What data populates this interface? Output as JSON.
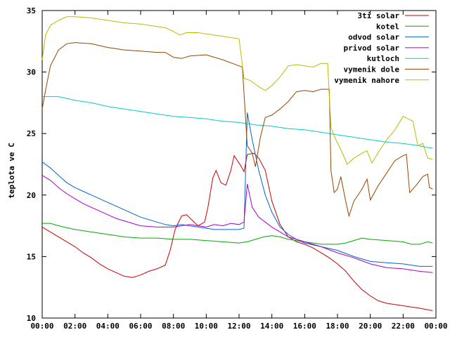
{
  "chart_data": {
    "type": "line",
    "title": "",
    "xlabel": "",
    "ylabel": "teplota ve C",
    "xlim": [
      0,
      24
    ],
    "ylim": [
      10,
      35
    ],
    "x_ticks": [
      0,
      2,
      4,
      6,
      8,
      10,
      12,
      14,
      16,
      18,
      20,
      22,
      24
    ],
    "x_tick_labels": [
      "00:00",
      "02:00",
      "04:00",
      "06:00",
      "08:00",
      "10:00",
      "12:00",
      "14:00",
      "16:00",
      "18:00",
      "20:00",
      "22:00",
      "00:00"
    ],
    "y_ticks": [
      10,
      15,
      20,
      25,
      30,
      35
    ],
    "y_tick_labels": [
      "10",
      "15",
      "20",
      "25",
      "30",
      "35"
    ],
    "grid": false,
    "legend_position": "top-right",
    "series": [
      {
        "name": "3ti solar",
        "color": "#cc0000",
        "points": [
          [
            0,
            17.4
          ],
          [
            0.5,
            17.0
          ],
          [
            1,
            16.6
          ],
          [
            1.5,
            16.2
          ],
          [
            2,
            15.8
          ],
          [
            2.5,
            15.3
          ],
          [
            3,
            14.9
          ],
          [
            3.5,
            14.4
          ],
          [
            4,
            14.0
          ],
          [
            4.5,
            13.7
          ],
          [
            5,
            13.4
          ],
          [
            5.5,
            13.3
          ],
          [
            6,
            13.5
          ],
          [
            6.5,
            13.8
          ],
          [
            7,
            14.0
          ],
          [
            7.5,
            14.3
          ],
          [
            7.8,
            15.5
          ],
          [
            8.1,
            17.2
          ],
          [
            8.5,
            18.3
          ],
          [
            8.8,
            18.4
          ],
          [
            9.1,
            18.0
          ],
          [
            9.5,
            17.5
          ],
          [
            9.9,
            17.8
          ],
          [
            10.1,
            19.0
          ],
          [
            10.4,
            21.4
          ],
          [
            10.6,
            22.0
          ],
          [
            10.9,
            21.0
          ],
          [
            11.2,
            20.8
          ],
          [
            11.5,
            22.0
          ],
          [
            11.7,
            23.2
          ],
          [
            12.1,
            22.4
          ],
          [
            12.3,
            21.9
          ],
          [
            12.5,
            23.3
          ],
          [
            12.9,
            23.4
          ],
          [
            13.2,
            23.0
          ],
          [
            13.6,
            22.0
          ],
          [
            14.0,
            19.5
          ],
          [
            14.5,
            17.6
          ],
          [
            15.0,
            16.6
          ],
          [
            15.5,
            16.2
          ],
          [
            16.0,
            16.0
          ],
          [
            16.5,
            15.7
          ],
          [
            17.0,
            15.3
          ],
          [
            17.5,
            14.9
          ],
          [
            18.0,
            14.4
          ],
          [
            18.5,
            13.8
          ],
          [
            19.0,
            13.0
          ],
          [
            19.5,
            12.3
          ],
          [
            20.0,
            11.8
          ],
          [
            20.5,
            11.4
          ],
          [
            21.0,
            11.2
          ],
          [
            22.0,
            11.0
          ],
          [
            23.0,
            10.8
          ],
          [
            23.8,
            10.6
          ]
        ]
      },
      {
        "name": "kotel",
        "color": "#00aa00",
        "points": [
          [
            0,
            17.7
          ],
          [
            0.5,
            17.7
          ],
          [
            1,
            17.5
          ],
          [
            2,
            17.2
          ],
          [
            3,
            17.0
          ],
          [
            4,
            16.8
          ],
          [
            5,
            16.6
          ],
          [
            6,
            16.5
          ],
          [
            7,
            16.5
          ],
          [
            8,
            16.4
          ],
          [
            9,
            16.4
          ],
          [
            10,
            16.3
          ],
          [
            11,
            16.2
          ],
          [
            12,
            16.1
          ],
          [
            12.5,
            16.2
          ],
          [
            13,
            16.4
          ],
          [
            13.5,
            16.6
          ],
          [
            14,
            16.7
          ],
          [
            14.5,
            16.6
          ],
          [
            15,
            16.4
          ],
          [
            16,
            16.2
          ],
          [
            17,
            16.0
          ],
          [
            18,
            16.0
          ],
          [
            18.5,
            16.1
          ],
          [
            19,
            16.3
          ],
          [
            19.5,
            16.5
          ],
          [
            20,
            16.4
          ],
          [
            21,
            16.3
          ],
          [
            22,
            16.2
          ],
          [
            22.5,
            16.0
          ],
          [
            23,
            16.0
          ],
          [
            23.5,
            16.2
          ],
          [
            23.8,
            16.1
          ]
        ]
      },
      {
        "name": "odvod solar",
        "color": "#0066cc",
        "points": [
          [
            0,
            22.7
          ],
          [
            0.5,
            22.2
          ],
          [
            1,
            21.6
          ],
          [
            1.5,
            21.0
          ],
          [
            2,
            20.6
          ],
          [
            2.5,
            20.3
          ],
          [
            3,
            20.0
          ],
          [
            3.5,
            19.7
          ],
          [
            4,
            19.4
          ],
          [
            4.5,
            19.1
          ],
          [
            5,
            18.8
          ],
          [
            5.5,
            18.5
          ],
          [
            6,
            18.2
          ],
          [
            6.5,
            18.0
          ],
          [
            7,
            17.8
          ],
          [
            7.5,
            17.6
          ],
          [
            8,
            17.5
          ],
          [
            8.5,
            17.6
          ],
          [
            9,
            17.5
          ],
          [
            9.5,
            17.4
          ],
          [
            10,
            17.3
          ],
          [
            10.5,
            17.2
          ],
          [
            11,
            17.2
          ],
          [
            11.5,
            17.2
          ],
          [
            12,
            17.2
          ],
          [
            12.3,
            17.3
          ],
          [
            12.5,
            26.7
          ],
          [
            12.8,
            24.5
          ],
          [
            13.2,
            22.0
          ],
          [
            13.6,
            20.0
          ],
          [
            14,
            18.6
          ],
          [
            14.5,
            17.4
          ],
          [
            15,
            16.8
          ],
          [
            15.5,
            16.4
          ],
          [
            16,
            16.1
          ],
          [
            17,
            15.8
          ],
          [
            18,
            15.5
          ],
          [
            19,
            15.0
          ],
          [
            20,
            14.6
          ],
          [
            21,
            14.5
          ],
          [
            22,
            14.4
          ],
          [
            23,
            14.2
          ],
          [
            23.8,
            14.2
          ]
        ]
      },
      {
        "name": "privod solar",
        "color": "#aa00cc",
        "points": [
          [
            0,
            21.6
          ],
          [
            0.5,
            21.2
          ],
          [
            1,
            20.6
          ],
          [
            1.5,
            20.1
          ],
          [
            2,
            19.7
          ],
          [
            2.5,
            19.3
          ],
          [
            3,
            19.0
          ],
          [
            3.5,
            18.7
          ],
          [
            4,
            18.4
          ],
          [
            4.5,
            18.1
          ],
          [
            5,
            17.9
          ],
          [
            5.5,
            17.7
          ],
          [
            6,
            17.5
          ],
          [
            7,
            17.4
          ],
          [
            8,
            17.4
          ],
          [
            9,
            17.6
          ],
          [
            9.5,
            17.5
          ],
          [
            10,
            17.4
          ],
          [
            10.5,
            17.6
          ],
          [
            11,
            17.5
          ],
          [
            11.5,
            17.7
          ],
          [
            12,
            17.6
          ],
          [
            12.3,
            17.8
          ],
          [
            12.5,
            20.9
          ],
          [
            12.8,
            19.0
          ],
          [
            13.2,
            18.2
          ],
          [
            13.6,
            17.8
          ],
          [
            14,
            17.4
          ],
          [
            15,
            16.6
          ],
          [
            16,
            16.2
          ],
          [
            17,
            15.8
          ],
          [
            18,
            15.3
          ],
          [
            19,
            14.9
          ],
          [
            20,
            14.4
          ],
          [
            21,
            14.1
          ],
          [
            22,
            14.0
          ],
          [
            23,
            13.8
          ],
          [
            23.8,
            13.7
          ]
        ]
      },
      {
        "name": "kutloch",
        "color": "#00cccc",
        "points": [
          [
            0,
            28.0
          ],
          [
            0.5,
            28.0
          ],
          [
            1,
            28.0
          ],
          [
            2,
            27.7
          ],
          [
            3,
            27.5
          ],
          [
            4,
            27.2
          ],
          [
            5,
            27.0
          ],
          [
            6,
            26.8
          ],
          [
            7,
            26.6
          ],
          [
            8,
            26.4
          ],
          [
            9,
            26.3
          ],
          [
            10,
            26.2
          ],
          [
            11,
            26.0
          ],
          [
            12,
            25.9
          ],
          [
            13,
            25.7
          ],
          [
            14,
            25.6
          ],
          [
            15,
            25.4
          ],
          [
            16,
            25.3
          ],
          [
            17,
            25.1
          ],
          [
            18,
            24.9
          ],
          [
            19,
            24.7
          ],
          [
            20,
            24.5
          ],
          [
            21,
            24.3
          ],
          [
            22,
            24.2
          ],
          [
            23,
            24.0
          ],
          [
            23.8,
            23.8
          ]
        ]
      },
      {
        "name": "vymenik dole",
        "color": "#994400",
        "points": [
          [
            0,
            27.0
          ],
          [
            0.2,
            28.5
          ],
          [
            0.5,
            30.5
          ],
          [
            1,
            31.8
          ],
          [
            1.5,
            32.3
          ],
          [
            2,
            32.4
          ],
          [
            3,
            32.3
          ],
          [
            4,
            32.0
          ],
          [
            5,
            31.8
          ],
          [
            6,
            31.7
          ],
          [
            7,
            31.6
          ],
          [
            7.5,
            31.6
          ],
          [
            8,
            31.2
          ],
          [
            8.5,
            31.1
          ],
          [
            9,
            31.3
          ],
          [
            10,
            31.4
          ],
          [
            11,
            31.0
          ],
          [
            12,
            30.5
          ],
          [
            12.2,
            30.4
          ],
          [
            12.5,
            24.0
          ],
          [
            12.8,
            23.4
          ],
          [
            13.0,
            22.3
          ],
          [
            13.3,
            24.7
          ],
          [
            13.6,
            26.3
          ],
          [
            14,
            26.5
          ],
          [
            14.5,
            27.0
          ],
          [
            15,
            27.6
          ],
          [
            15.5,
            28.4
          ],
          [
            16,
            28.5
          ],
          [
            16.5,
            28.4
          ],
          [
            17,
            28.6
          ],
          [
            17.5,
            28.6
          ],
          [
            17.6,
            22.0
          ],
          [
            17.8,
            20.2
          ],
          [
            18.0,
            20.5
          ],
          [
            18.2,
            21.5
          ],
          [
            18.5,
            19.5
          ],
          [
            18.7,
            18.3
          ],
          [
            19.0,
            19.5
          ],
          [
            19.5,
            20.5
          ],
          [
            19.8,
            21.3
          ],
          [
            20.0,
            19.6
          ],
          [
            20.5,
            20.8
          ],
          [
            21,
            21.8
          ],
          [
            21.5,
            22.8
          ],
          [
            22,
            23.2
          ],
          [
            22.2,
            23.3
          ],
          [
            22.4,
            20.2
          ],
          [
            22.8,
            20.8
          ],
          [
            23.2,
            21.5
          ],
          [
            23.5,
            21.7
          ],
          [
            23.6,
            20.6
          ],
          [
            23.8,
            20.5
          ]
        ]
      },
      {
        "name": "vymenik nahore",
        "color": "#bbbb00",
        "points": [
          [
            0,
            31.0
          ],
          [
            0.2,
            33.0
          ],
          [
            0.5,
            33.8
          ],
          [
            1,
            34.2
          ],
          [
            1.5,
            34.5
          ],
          [
            2,
            34.5
          ],
          [
            3,
            34.4
          ],
          [
            4,
            34.2
          ],
          [
            5,
            34.0
          ],
          [
            6,
            33.9
          ],
          [
            7,
            33.7
          ],
          [
            7.5,
            33.6
          ],
          [
            8,
            33.3
          ],
          [
            8.4,
            33.0
          ],
          [
            8.8,
            33.2
          ],
          [
            9.5,
            33.2
          ],
          [
            10,
            33.1
          ],
          [
            11,
            32.9
          ],
          [
            12,
            32.7
          ],
          [
            12.3,
            29.5
          ],
          [
            12.7,
            29.3
          ],
          [
            13.2,
            28.8
          ],
          [
            13.6,
            28.5
          ],
          [
            14,
            28.9
          ],
          [
            14.5,
            29.6
          ],
          [
            15,
            30.5
          ],
          [
            15.5,
            30.6
          ],
          [
            16,
            30.5
          ],
          [
            16.5,
            30.4
          ],
          [
            17,
            30.7
          ],
          [
            17.4,
            30.7
          ],
          [
            17.6,
            25.5
          ],
          [
            17.9,
            24.5
          ],
          [
            18.2,
            23.7
          ],
          [
            18.6,
            22.5
          ],
          [
            19,
            23.0
          ],
          [
            19.5,
            23.4
          ],
          [
            19.8,
            23.6
          ],
          [
            20.1,
            22.6
          ],
          [
            20.5,
            23.5
          ],
          [
            21,
            24.5
          ],
          [
            21.5,
            25.3
          ],
          [
            22,
            26.4
          ],
          [
            22.3,
            26.2
          ],
          [
            22.6,
            26.0
          ],
          [
            22.9,
            24.0
          ],
          [
            23.2,
            24.2
          ],
          [
            23.5,
            23.0
          ],
          [
            23.8,
            22.9
          ]
        ]
      }
    ]
  }
}
